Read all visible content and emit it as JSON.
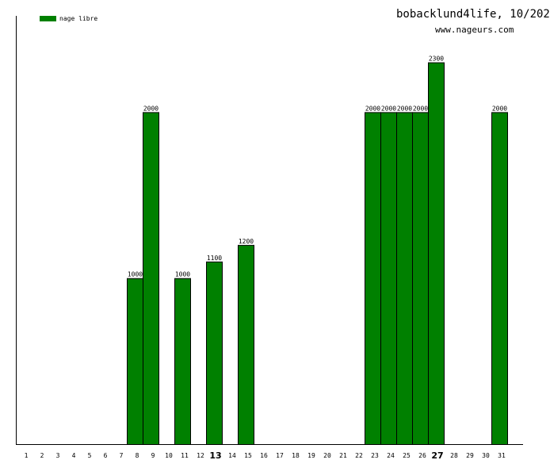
{
  "chart_data": {
    "type": "bar",
    "title": "bobacklund4life, 10/202",
    "subtitle": "www.nageurs.com",
    "categories": [
      "1",
      "2",
      "3",
      "4",
      "5",
      "6",
      "7",
      "8",
      "9",
      "10",
      "11",
      "12",
      "13",
      "14",
      "15",
      "16",
      "17",
      "18",
      "19",
      "20",
      "21",
      "22",
      "23",
      "24",
      "25",
      "26",
      "27",
      "28",
      "29",
      "30",
      "31"
    ],
    "highlighted_categories": [
      "13",
      "27"
    ],
    "series": [
      {
        "name": "nage libre",
        "color": "#008000",
        "values": [
          0,
          0,
          0,
          0,
          0,
          0,
          0,
          1000,
          2000,
          0,
          1000,
          0,
          1100,
          0,
          1200,
          0,
          0,
          0,
          0,
          0,
          0,
          0,
          2000,
          2000,
          2000,
          2000,
          2300,
          0,
          0,
          0,
          2000
        ]
      }
    ],
    "ylim": [
      0,
      2580
    ],
    "legend": "top-left",
    "grid": false
  }
}
